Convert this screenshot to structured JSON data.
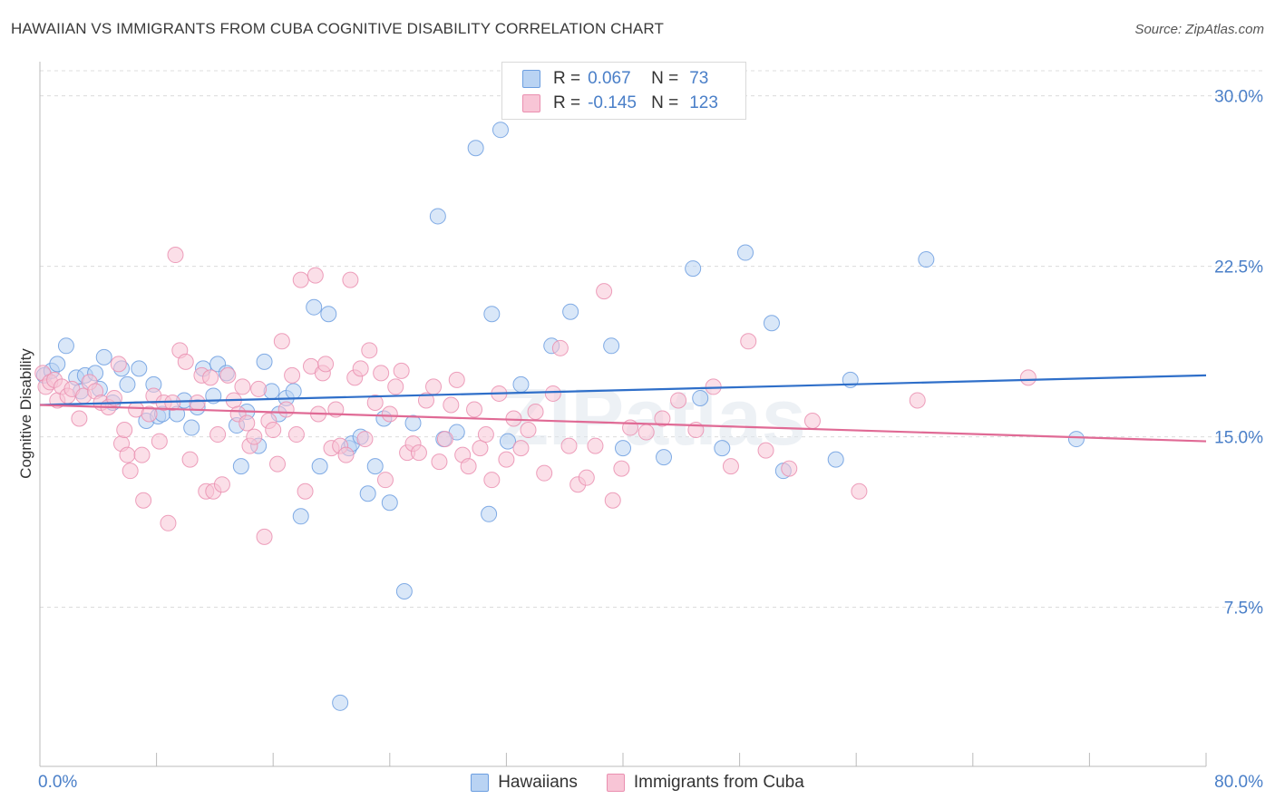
{
  "title": "HAWAIIAN VS IMMIGRANTS FROM CUBA COGNITIVE DISABILITY CORRELATION CHART",
  "source": "Source: ZipAtlas.com",
  "watermark": "ZIPatlas",
  "legend_stats": [
    {
      "r_label": "R =",
      "r_value": "0.067",
      "n_label": "N =",
      "n_value": "73",
      "fill": "#b9d3f3",
      "stroke": "#6c9ee0"
    },
    {
      "r_label": "R =",
      "r_value": "-0.145",
      "n_label": "N =",
      "n_value": "123",
      "fill": "#f8c5d6",
      "stroke": "#ea8fb0"
    }
  ],
  "x_tick_left": "0.0%",
  "x_tick_right": "80.0%",
  "chart_data": {
    "type": "scatter",
    "title": "HAWAIIAN VS IMMIGRANTS FROM CUBA COGNITIVE DISABILITY CORRELATION CHART",
    "xlabel": "",
    "ylabel": "Cognitive Disability",
    "xlim": [
      0,
      80
    ],
    "ylim": [
      0.5,
      31.5
    ],
    "y_ticks": [
      7.5,
      15.0,
      22.5,
      30.0
    ],
    "y_tick_labels": [
      "7.5%",
      "15.0%",
      "22.5%",
      "30.0%"
    ],
    "grid": "horizontal dashed",
    "legend_position": "bottom-center",
    "series": [
      {
        "name": "Hawaiians",
        "color": "#6c9ee0",
        "fill": "#b9d3f3",
        "trend": [
          [
            0,
            16.4
          ],
          [
            80,
            17.7
          ]
        ],
        "points": [
          [
            0.3,
            17.7
          ],
          [
            0.8,
            17.9
          ],
          [
            1.2,
            18.2
          ],
          [
            1.8,
            19.0
          ],
          [
            2.5,
            17.6
          ],
          [
            2.8,
            17.0
          ],
          [
            3.1,
            17.7
          ],
          [
            3.8,
            17.8
          ],
          [
            4.1,
            17.1
          ],
          [
            4.4,
            18.5
          ],
          [
            5.0,
            16.5
          ],
          [
            5.6,
            18.0
          ],
          [
            6.0,
            17.3
          ],
          [
            6.8,
            18.0
          ],
          [
            7.3,
            15.7
          ],
          [
            7.8,
            17.3
          ],
          [
            8.1,
            15.9
          ],
          [
            8.4,
            16.0
          ],
          [
            9.4,
            16.0
          ],
          [
            9.9,
            16.6
          ],
          [
            10.4,
            15.4
          ],
          [
            10.8,
            16.3
          ],
          [
            11.2,
            18.0
          ],
          [
            11.9,
            16.8
          ],
          [
            12.2,
            18.2
          ],
          [
            12.8,
            17.8
          ],
          [
            13.5,
            15.5
          ],
          [
            13.8,
            13.7
          ],
          [
            14.2,
            16.1
          ],
          [
            15.0,
            14.6
          ],
          [
            15.4,
            18.3
          ],
          [
            15.9,
            17.0
          ],
          [
            16.4,
            16.0
          ],
          [
            16.9,
            16.7
          ],
          [
            17.4,
            17.0
          ],
          [
            17.9,
            11.5
          ],
          [
            18.8,
            20.7
          ],
          [
            19.2,
            13.7
          ],
          [
            19.8,
            20.4
          ],
          [
            20.6,
            3.3
          ],
          [
            21.2,
            14.5
          ],
          [
            21.4,
            14.7
          ],
          [
            22.0,
            15.0
          ],
          [
            22.5,
            12.5
          ],
          [
            23.0,
            13.7
          ],
          [
            23.6,
            15.8
          ],
          [
            24.0,
            12.1
          ],
          [
            25.0,
            8.2
          ],
          [
            25.6,
            15.6
          ],
          [
            27.3,
            24.7
          ],
          [
            27.7,
            14.9
          ],
          [
            28.6,
            15.2
          ],
          [
            29.9,
            27.7
          ],
          [
            30.8,
            11.6
          ],
          [
            31.0,
            20.4
          ],
          [
            31.6,
            28.5
          ],
          [
            32.1,
            14.8
          ],
          [
            33.0,
            17.3
          ],
          [
            35.1,
            19.0
          ],
          [
            36.4,
            20.5
          ],
          [
            39.2,
            19.0
          ],
          [
            40.0,
            14.5
          ],
          [
            42.8,
            14.1
          ],
          [
            44.8,
            22.4
          ],
          [
            45.3,
            16.7
          ],
          [
            46.8,
            14.5
          ],
          [
            48.4,
            23.1
          ],
          [
            50.2,
            20.0
          ],
          [
            51.0,
            13.5
          ],
          [
            54.6,
            14.0
          ],
          [
            55.6,
            17.5
          ],
          [
            60.8,
            22.8
          ],
          [
            71.1,
            14.9
          ]
        ]
      },
      {
        "name": "Immigrants from Cuba",
        "color": "#ea8fb0",
        "fill": "#f8c5d6",
        "trend": [
          [
            0,
            16.4
          ],
          [
            80,
            14.8
          ]
        ],
        "points": [
          [
            0.2,
            17.8
          ],
          [
            0.4,
            17.2
          ],
          [
            0.7,
            17.4
          ],
          [
            1.0,
            17.5
          ],
          [
            1.2,
            16.6
          ],
          [
            1.5,
            17.2
          ],
          [
            1.9,
            16.8
          ],
          [
            2.2,
            17.1
          ],
          [
            2.7,
            15.8
          ],
          [
            3.0,
            16.8
          ],
          [
            3.4,
            17.4
          ],
          [
            3.8,
            17.0
          ],
          [
            4.2,
            16.5
          ],
          [
            4.7,
            16.3
          ],
          [
            5.1,
            16.7
          ],
          [
            5.4,
            18.2
          ],
          [
            5.6,
            14.7
          ],
          [
            5.8,
            15.3
          ],
          [
            6.0,
            14.2
          ],
          [
            6.2,
            13.5
          ],
          [
            6.6,
            16.2
          ],
          [
            7.0,
            14.2
          ],
          [
            7.1,
            12.2
          ],
          [
            7.5,
            16.0
          ],
          [
            7.8,
            16.8
          ],
          [
            8.2,
            14.8
          ],
          [
            8.5,
            16.5
          ],
          [
            8.8,
            11.2
          ],
          [
            9.1,
            16.5
          ],
          [
            9.3,
            23.0
          ],
          [
            9.6,
            18.8
          ],
          [
            10.0,
            18.3
          ],
          [
            10.3,
            14.0
          ],
          [
            10.8,
            16.5
          ],
          [
            11.1,
            17.7
          ],
          [
            11.4,
            12.6
          ],
          [
            11.7,
            17.6
          ],
          [
            11.9,
            12.6
          ],
          [
            12.2,
            15.1
          ],
          [
            12.5,
            12.9
          ],
          [
            12.9,
            17.7
          ],
          [
            13.3,
            16.6
          ],
          [
            13.6,
            16.0
          ],
          [
            13.9,
            17.2
          ],
          [
            14.2,
            15.6
          ],
          [
            14.4,
            14.6
          ],
          [
            14.7,
            15.0
          ],
          [
            15.0,
            17.1
          ],
          [
            15.4,
            10.6
          ],
          [
            15.7,
            15.7
          ],
          [
            16.0,
            15.3
          ],
          [
            16.3,
            13.8
          ],
          [
            16.6,
            19.2
          ],
          [
            16.9,
            16.2
          ],
          [
            17.3,
            17.7
          ],
          [
            17.6,
            15.1
          ],
          [
            17.9,
            21.9
          ],
          [
            18.2,
            12.6
          ],
          [
            18.6,
            18.1
          ],
          [
            18.9,
            22.1
          ],
          [
            19.1,
            16.0
          ],
          [
            19.4,
            17.8
          ],
          [
            19.6,
            18.2
          ],
          [
            20.0,
            14.5
          ],
          [
            20.3,
            16.2
          ],
          [
            20.6,
            14.6
          ],
          [
            21.0,
            14.2
          ],
          [
            21.3,
            21.9
          ],
          [
            21.6,
            17.6
          ],
          [
            22.0,
            18.0
          ],
          [
            22.3,
            14.9
          ],
          [
            22.6,
            18.8
          ],
          [
            23.0,
            16.5
          ],
          [
            23.4,
            17.8
          ],
          [
            23.7,
            13.1
          ],
          [
            24.0,
            16.0
          ],
          [
            24.4,
            17.2
          ],
          [
            24.8,
            17.9
          ],
          [
            25.2,
            14.3
          ],
          [
            25.6,
            14.7
          ],
          [
            26.0,
            14.3
          ],
          [
            26.5,
            16.6
          ],
          [
            27.0,
            17.2
          ],
          [
            27.4,
            13.9
          ],
          [
            27.8,
            14.9
          ],
          [
            28.2,
            16.4
          ],
          [
            28.6,
            17.5
          ],
          [
            29.0,
            14.2
          ],
          [
            29.4,
            13.7
          ],
          [
            29.8,
            16.2
          ],
          [
            30.2,
            14.5
          ],
          [
            30.6,
            15.1
          ],
          [
            31.0,
            13.1
          ],
          [
            31.5,
            16.9
          ],
          [
            32.0,
            14.0
          ],
          [
            32.5,
            15.8
          ],
          [
            33.0,
            14.5
          ],
          [
            33.5,
            15.3
          ],
          [
            34.0,
            16.1
          ],
          [
            34.6,
            13.4
          ],
          [
            35.2,
            16.9
          ],
          [
            35.7,
            18.9
          ],
          [
            36.3,
            14.6
          ],
          [
            36.9,
            12.9
          ],
          [
            37.5,
            13.2
          ],
          [
            38.1,
            14.6
          ],
          [
            38.7,
            21.4
          ],
          [
            39.3,
            12.2
          ],
          [
            39.9,
            13.6
          ],
          [
            40.5,
            15.4
          ],
          [
            41.6,
            15.2
          ],
          [
            42.7,
            15.8
          ],
          [
            43.8,
            16.6
          ],
          [
            45.0,
            15.3
          ],
          [
            46.2,
            17.2
          ],
          [
            47.4,
            13.7
          ],
          [
            48.6,
            19.2
          ],
          [
            49.8,
            14.4
          ],
          [
            51.4,
            13.6
          ],
          [
            53.0,
            15.7
          ],
          [
            56.2,
            12.6
          ],
          [
            60.2,
            16.6
          ],
          [
            67.8,
            17.6
          ]
        ]
      }
    ]
  },
  "series_legend": [
    {
      "label": "Hawaiians",
      "fill": "#b9d3f3",
      "stroke": "#6c9ee0"
    },
    {
      "label": "Immigrants from Cuba",
      "fill": "#f8c5d6",
      "stroke": "#ea8fb0"
    }
  ]
}
